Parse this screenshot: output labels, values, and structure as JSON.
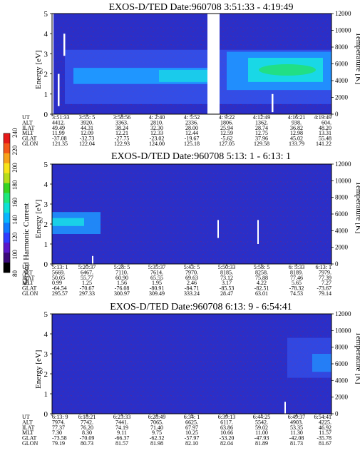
{
  "colors": {
    "background_fill": "#2a2fc8",
    "low_band": "#3a66ff",
    "mid_band": "#1f96ff",
    "high_band": "#19d8e6",
    "green": "#22e07a",
    "colorbar": [
      "#000000",
      "#3b0a7a",
      "#5a17c9",
      "#2f3cff",
      "#0f7bff",
      "#08b6ff",
      "#0fe1d6",
      "#1ee87c",
      "#35d421",
      "#b5dd1a",
      "#f7e41a",
      "#f7a21a",
      "#f4571a",
      "#e61a1a"
    ]
  },
  "colorbar": {
    "label": "Second Harmonic Current",
    "ticks": [
      "80",
      "100",
      "120",
      "140",
      "160",
      "180",
      "200",
      "220",
      "240"
    ]
  },
  "chart_data": [
    {
      "type": "heatmap",
      "title": "EXOS-D/TED   Date:960708   3:51:33 - 4:19:49",
      "ylabel": "Energy [eV]",
      "y2label": "Temperature [K]",
      "ylim": [
        0,
        5
      ],
      "y2lim": [
        0,
        12000
      ],
      "yticks": [
        "0",
        "1",
        "2",
        "3",
        "4",
        "5"
      ],
      "y2ticks": [
        "0",
        "2000",
        "4000",
        "6000",
        "8000",
        "10000",
        "12000"
      ],
      "ephemeris": {
        "UT": [
          "3:51:33",
          "3:55: 5",
          "3:58:56",
          "4: 2:40",
          "4: 5:52",
          "4: 9:22",
          "4:12:49",
          "4:16:21",
          "4:19:49"
        ],
        "ALT": [
          "4412.",
          "3920.",
          "3363.",
          "2810.",
          "2336.",
          "1806.",
          "1362.",
          "938.",
          "604."
        ],
        "ILAT": [
          "49.49",
          "44.31",
          "38.24",
          "32.30",
          "28.00",
          "25.94",
          "28.74",
          "36.82",
          "48.20"
        ],
        "MLT": [
          "11.99",
          "12.09",
          "12.21",
          "12.33",
          "12.44",
          "12.59",
          "12.75",
          "12.98",
          "13.31"
        ],
        "GLAT": [
          "-37.08",
          "-32.73",
          "-27.75",
          "-23.02",
          "-19.67",
          "-5.62",
          "37.96",
          "45.02",
          "55.48"
        ],
        "GLON": [
          "121.35",
          "122.04",
          "122.93",
          "124.00",
          "125.18",
          "127.05",
          "129.58",
          "133.79",
          "141.22"
        ]
      }
    },
    {
      "type": "heatmap",
      "title": "EXOS-D/TED   Date:960708   5:13: 1 - 6:13: 1",
      "ylabel": "Energy [eV]",
      "y2label": "Temperature [K]",
      "ylim": [
        0,
        5
      ],
      "y2lim": [
        0,
        12000
      ],
      "yticks": [
        "0",
        "1",
        "2",
        "3",
        "4",
        "5"
      ],
      "y2ticks": [
        "0",
        "2000",
        "4000",
        "6000",
        "8000",
        "10000",
        "12000"
      ],
      "ephemeris": {
        "UT": [
          "5:13: 1",
          "5:20:37",
          "5:28: 5",
          "5:35:37",
          "5:43: 5",
          "5:50:33",
          "5:58: 5",
          "6: 5:33",
          "6:13: 1"
        ],
        "ALT": [
          "5669.",
          "6467.",
          "7110.",
          "7614.",
          "7970.",
          "8185.",
          "8258.",
          "8189.",
          "7979."
        ],
        "ILAT": [
          "50.05",
          "55.77",
          "60.90",
          "65.55",
          "69.63",
          "73.12",
          "75.88",
          "77.46",
          "77.39"
        ],
        "MLT": [
          "0.99",
          "1.25",
          "1.56",
          "1.95",
          "2.46",
          "3.17",
          "4.22",
          "5.65",
          "7.27"
        ],
        "GLAT": [
          "-64.54",
          "-70.67",
          "-76.08",
          "-80.91",
          "-84.71",
          "-85.53",
          "-82.51",
          "-78.32",
          "-73.67"
        ],
        "GLON": [
          "295.57",
          "297.33",
          "300.97",
          "309.49",
          "333.24",
          "28.47",
          "63.01",
          "74.53",
          "79.14"
        ]
      }
    },
    {
      "type": "heatmap",
      "title": "EXOS-D/TED   Date:960708   6:13: 9 - 6:54:41",
      "ylabel": "Energy [eV]",
      "y2label": "Temperature [K]",
      "ylim": [
        0,
        5
      ],
      "y2lim": [
        0,
        12000
      ],
      "yticks": [
        "0",
        "1",
        "2",
        "3",
        "4",
        "5"
      ],
      "y2ticks": [
        "0",
        "2000",
        "4000",
        "6000",
        "8000",
        "10000",
        "12000"
      ],
      "ephemeris": {
        "UT": [
          "6:13: 9",
          "6:18:21",
          "6:23:33",
          "6:28:49",
          "6:34: 1",
          "6:39:13",
          "6:44:25",
          "6:49:37",
          "6:54:41"
        ],
        "ALT": [
          "7974.",
          "7742.",
          "7441.",
          "7065.",
          "6625.",
          "6117.",
          "5542.",
          "4903.",
          "4225."
        ],
        "ILAT": [
          "77.37",
          "76.20",
          "74.19",
          "71.40",
          "67.97",
          "63.86",
          "59.02",
          "53.35",
          "46.92"
        ],
        "MLT": [
          "7.30",
          "8.30",
          "9.11",
          "9.75",
          "10.25",
          "10.66",
          "11.00",
          "11.30",
          "11.57"
        ],
        "GLAT": [
          "-73.58",
          "-70.09",
          "-66.37",
          "-62.32",
          "-57.97",
          "-53.20",
          "-47.93",
          "-42.08",
          "-35.78"
        ],
        "GLON": [
          "79.19",
          "80.73",
          "81.57",
          "81.98",
          "82.10",
          "82.04",
          "81.89",
          "81.73",
          "81.67"
        ]
      }
    }
  ]
}
